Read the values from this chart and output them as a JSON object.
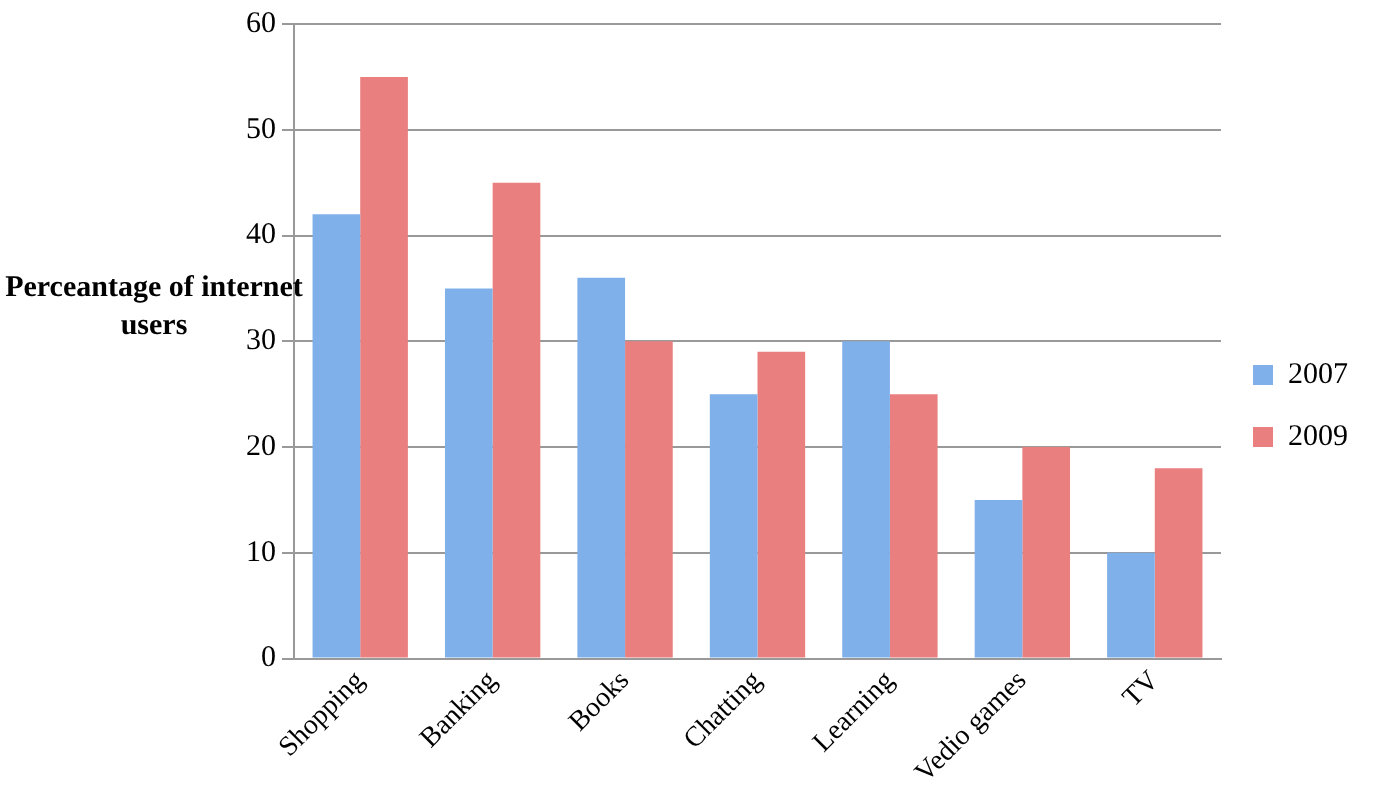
{
  "chart_data": {
    "type": "bar",
    "ylabel": "Perceantage of internet users",
    "categories": [
      "Shopping",
      "Banking",
      "Books",
      "Chatting",
      "Learning",
      "Vedio games",
      "TV"
    ],
    "series": [
      {
        "name": "2007",
        "color": "#7fb0ea",
        "values": [
          42,
          35,
          36,
          25,
          30,
          15,
          10
        ]
      },
      {
        "name": "2009",
        "color": "#ea7f7f",
        "values": [
          55,
          45,
          30,
          29,
          25,
          20,
          18
        ]
      }
    ],
    "ylim": [
      0,
      60
    ],
    "yticks": [
      0,
      10,
      20,
      30,
      40,
      50,
      60
    ],
    "grid": "y",
    "legend": "right"
  }
}
